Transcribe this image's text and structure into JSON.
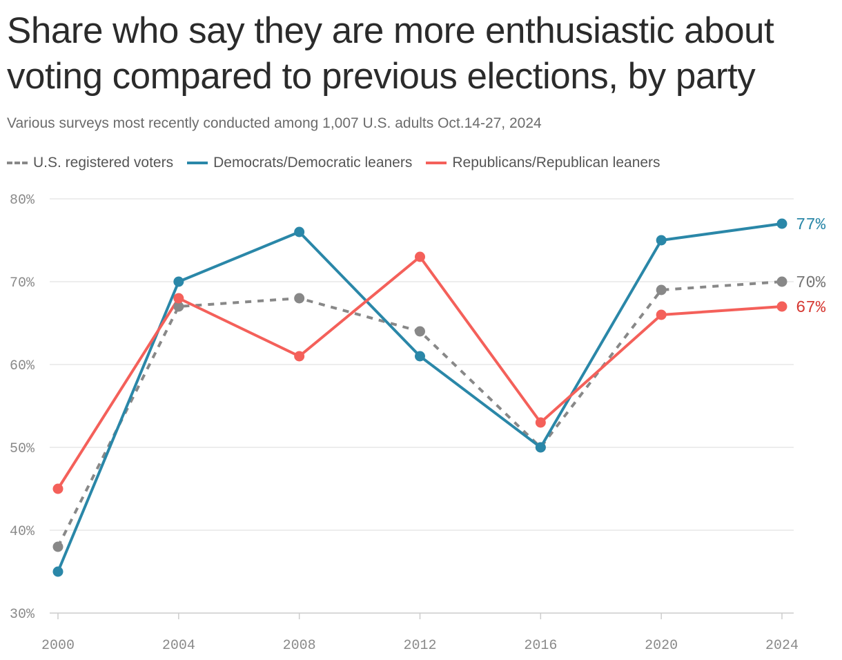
{
  "title": "Share who say they are more enthusiastic about voting compared to previous elections, by party",
  "subtitle": "Various surveys most recently conducted among 1,007 U.S. adults Oct.14-27, 2024",
  "legend": [
    {
      "label": "U.S. registered voters",
      "color": "#888888",
      "style": "dashed"
    },
    {
      "label": "Democrats/Democratic leaners",
      "color": "#2a87a8",
      "style": "solid"
    },
    {
      "label": "Republicans/Republican leaners",
      "color": "#f4605a",
      "style": "solid"
    }
  ],
  "chart_data": {
    "type": "line",
    "x": [
      2000,
      2004,
      2008,
      2012,
      2016,
      2020,
      2024
    ],
    "x_tick_labels": [
      "2000",
      "2004",
      "2008",
      "2012",
      "2016",
      "2020",
      "2024"
    ],
    "y_tick_labels": [
      "30%",
      "40%",
      "50%",
      "60%",
      "70%",
      "80%"
    ],
    "y_ticks": [
      30,
      40,
      50,
      60,
      70,
      80
    ],
    "ylim": [
      30,
      80
    ],
    "grid": true,
    "legend_position": "top-left",
    "series": [
      {
        "name": "U.S. registered voters",
        "values": [
          38,
          67,
          68,
          64,
          50,
          69,
          70
        ],
        "color": "#888888",
        "dashed": true,
        "end_label": "70%",
        "end_label_color": "#777777"
      },
      {
        "name": "Democrats/Democratic leaners",
        "values": [
          35,
          70,
          76,
          61,
          50,
          75,
          77
        ],
        "color": "#2a87a8",
        "dashed": false,
        "end_label": "77%",
        "end_label_color": "#2a87a8"
      },
      {
        "name": "Republicans/Republican leaners",
        "values": [
          45,
          68,
          61,
          73,
          53,
          66,
          67
        ],
        "color": "#f4605a",
        "dashed": false,
        "end_label": "67%",
        "end_label_color": "#d63a34"
      }
    ]
  }
}
